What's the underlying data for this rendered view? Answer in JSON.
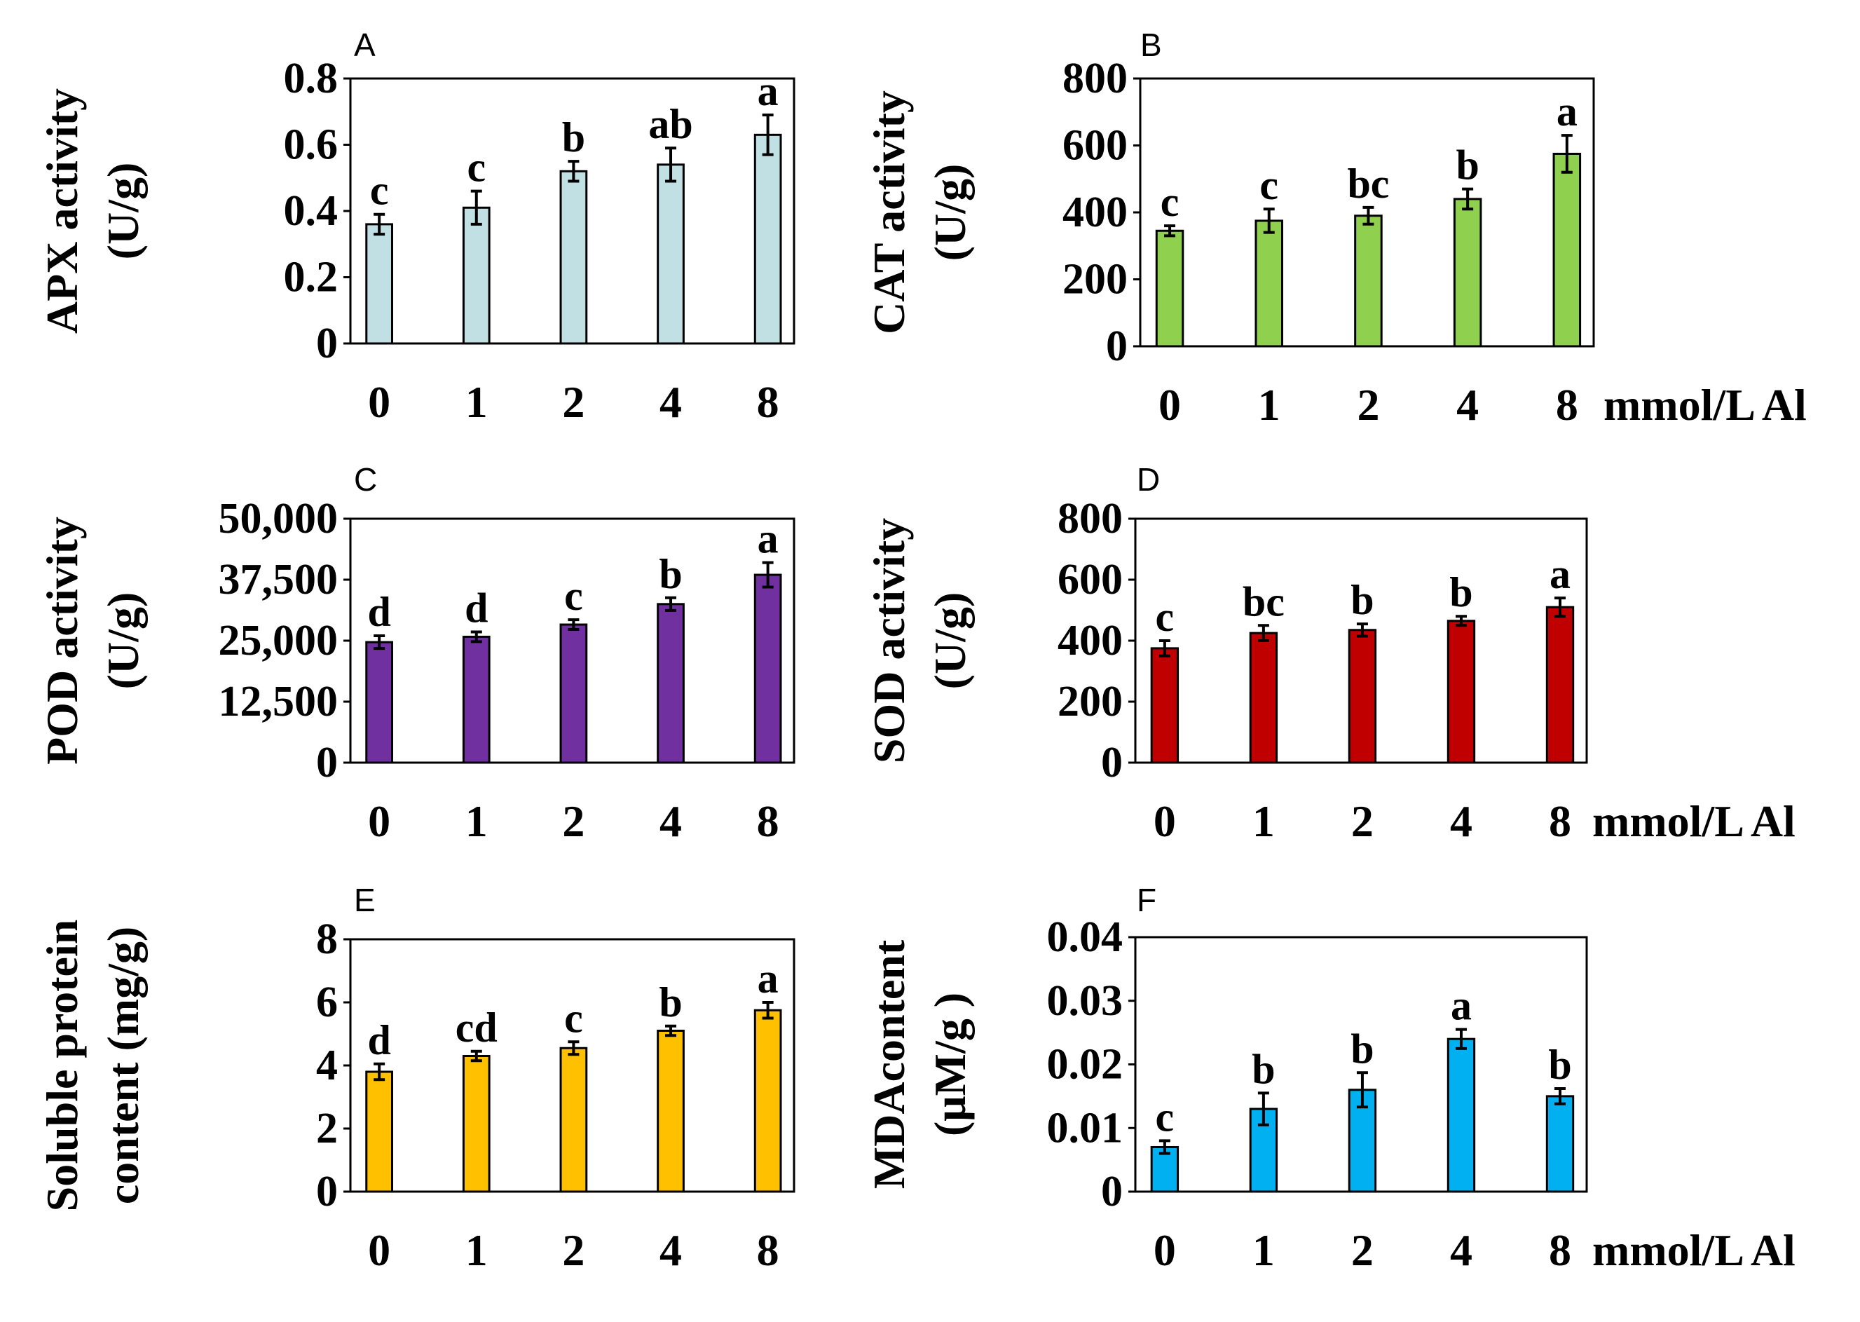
{
  "chart_data": [
    {
      "type": "bar",
      "panel": "A",
      "ylabel": [
        "APX activity",
        "(U/g)"
      ],
      "categories": [
        "0",
        "1",
        "2",
        "4",
        "8"
      ],
      "values": [
        0.36,
        0.41,
        0.52,
        0.54,
        0.63
      ],
      "errors": [
        0.03,
        0.05,
        0.03,
        0.05,
        0.06
      ],
      "letters": [
        "c",
        "c",
        "b",
        "ab",
        "a"
      ],
      "ylim": [
        0,
        0.8
      ],
      "yticks": [
        0,
        0.2,
        0.4,
        0.6,
        0.8
      ],
      "ytick_labels": [
        "0",
        "0.2",
        "0.4",
        "0.6",
        "0.8"
      ],
      "color": "#c0e0e4",
      "xunit": ""
    },
    {
      "type": "bar",
      "panel": "B",
      "ylabel": [
        "CAT activity",
        "(U/g)"
      ],
      "categories": [
        "0",
        "1",
        "2",
        "4",
        "8"
      ],
      "values": [
        345,
        375,
        390,
        440,
        575
      ],
      "errors": [
        15,
        35,
        25,
        30,
        55
      ],
      "letters": [
        "c",
        "c",
        "bc",
        "b",
        "a"
      ],
      "ylim": [
        0,
        800
      ],
      "yticks": [
        0,
        200,
        400,
        600,
        800
      ],
      "ytick_labels": [
        "0",
        "200",
        "400",
        "600",
        "800"
      ],
      "color": "#8fd14f",
      "xunit": "mmol/L Al"
    },
    {
      "type": "bar",
      "panel": "C",
      "ylabel": [
        "POD activity",
        "(U/g)"
      ],
      "categories": [
        "0",
        "1",
        "2",
        "4",
        "8"
      ],
      "values": [
        24700,
        25800,
        28300,
        32500,
        38500
      ],
      "errors": [
        1300,
        1000,
        1000,
        1300,
        2500
      ],
      "letters": [
        "d",
        "d",
        "c",
        "b",
        "a"
      ],
      "ylim": [
        0,
        50000
      ],
      "yticks": [
        0,
        12500,
        25000,
        37500,
        50000
      ],
      "ytick_labels": [
        "0",
        "12,500",
        "25,000",
        "37,500",
        "50,000"
      ],
      "color": "#7030a0",
      "xunit": ""
    },
    {
      "type": "bar",
      "panel": "D",
      "ylabel": [
        "SOD activity",
        "(U/g)"
      ],
      "categories": [
        "0",
        "1",
        "2",
        "4",
        "8"
      ],
      "values": [
        375,
        425,
        435,
        465,
        510
      ],
      "errors": [
        25,
        25,
        20,
        15,
        30
      ],
      "letters": [
        "c",
        "bc",
        "b",
        "b",
        "a"
      ],
      "ylim": [
        0,
        800
      ],
      "yticks": [
        0,
        200,
        400,
        600,
        800
      ],
      "ytick_labels": [
        "0",
        "200",
        "400",
        "600",
        "800"
      ],
      "color": "#c00000",
      "xunit": "mmol/L Al"
    },
    {
      "type": "bar",
      "panel": "E",
      "ylabel": [
        "Soluble protein",
        "content (mg/g)"
      ],
      "categories": [
        "0",
        "1",
        "2",
        "4",
        "8"
      ],
      "values": [
        3.8,
        4.3,
        4.55,
        5.1,
        5.75
      ],
      "errors": [
        0.25,
        0.15,
        0.2,
        0.15,
        0.25
      ],
      "letters": [
        "d",
        "cd",
        "c",
        "b",
        "a"
      ],
      "ylim": [
        0,
        8
      ],
      "yticks": [
        0,
        2,
        4,
        6,
        8
      ],
      "ytick_labels": [
        "0",
        "2",
        "4",
        "6",
        "8"
      ],
      "color": "#ffc000",
      "xunit": ""
    },
    {
      "type": "bar",
      "panel": "F",
      "ylabel": [
        "MDAcontent",
        "(μM/g )"
      ],
      "categories": [
        "0",
        "1",
        "2",
        "4",
        "8"
      ],
      "values": [
        0.007,
        0.013,
        0.016,
        0.024,
        0.015
      ],
      "errors": [
        0.001,
        0.0025,
        0.0027,
        0.0015,
        0.0012
      ],
      "letters": [
        "c",
        "b",
        "b",
        "a",
        "b"
      ],
      "ylim": [
        0,
        0.04
      ],
      "yticks": [
        0,
        0.01,
        0.02,
        0.03,
        0.04
      ],
      "ytick_labels": [
        "0",
        "0.01",
        "0.02",
        "0.03",
        "0.04"
      ],
      "color": "#00b0f0",
      "xunit": "mmol/L Al"
    }
  ]
}
